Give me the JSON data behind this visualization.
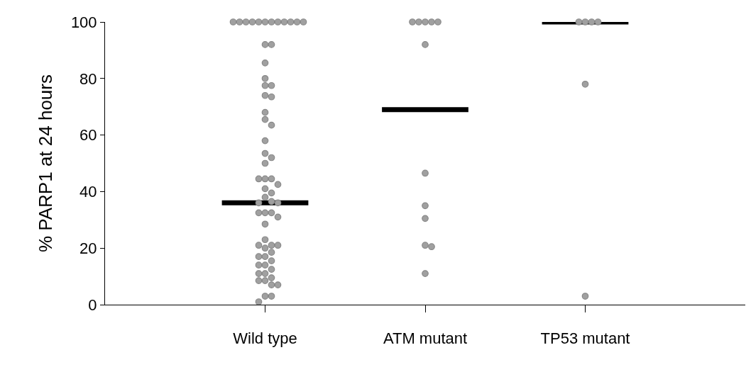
{
  "chart_data": {
    "type": "scatter",
    "ylabel": "% PARP1 at 24 hours",
    "categories": [
      "Wild type",
      "ATM mutant",
      "TP53 mutant"
    ],
    "ylim": [
      0,
      100
    ],
    "yticks": [
      0,
      20,
      40,
      60,
      80,
      100
    ],
    "series": [
      {
        "type": "box",
        "color": "#000000",
        "boxes": [
          {
            "low": 36,
            "q1": 36,
            "median": 36,
            "q3": 36,
            "high": 36
          },
          {
            "low": 69,
            "q1": 69,
            "median": 69,
            "q3": 69,
            "high": 69
          },
          {
            "low": 100,
            "q1": 100,
            "median": 100,
            "q3": 100,
            "high": 100
          }
        ]
      },
      {
        "color": "#a0a0a0",
        "marker": "circle",
        "x": [
          "Wild type",
          "Wild type",
          "Wild type",
          "Wild type",
          "Wild type",
          "Wild type",
          "Wild type",
          "Wild type",
          "Wild type",
          "Wild type",
          "Wild type",
          "Wild type",
          "Wild type",
          "Wild type",
          "Wild type",
          "Wild type",
          "Wild type",
          "Wild type",
          "Wild type",
          "Wild type",
          "Wild type",
          "Wild type",
          "Wild type",
          "Wild type",
          "Wild type",
          "Wild type",
          "Wild type",
          "Wild type",
          "Wild type",
          "Wild type",
          "Wild type",
          "Wild type",
          "Wild type",
          "Wild type",
          "Wild type",
          "Wild type",
          "Wild type",
          "Wild type",
          "Wild type",
          "Wild type",
          "Wild type",
          "Wild type",
          "Wild type",
          "Wild type",
          "Wild type",
          "Wild type",
          "Wild type",
          "Wild type",
          "Wild type",
          "Wild type",
          "Wild type",
          "Wild type",
          "Wild type",
          "Wild type",
          "Wild type",
          "Wild type",
          "Wild type",
          "Wild type",
          "Wild type",
          "Wild type",
          "Wild type",
          "Wild type",
          "Wild type",
          "Wild type",
          "ATM mutant",
          "ATM mutant",
          "ATM mutant",
          "ATM mutant",
          "ATM mutant",
          "ATM mutant",
          "ATM mutant",
          "ATM mutant",
          "ATM mutant",
          "ATM mutant",
          "ATM mutant",
          "ATM mutant",
          "TP53 mutant",
          "TP53 mutant",
          "TP53 mutant",
          "TP53 mutant",
          "TP53 mutant",
          "TP53 mutant"
        ],
        "values": [
          100,
          100,
          100,
          100,
          100,
          100,
          100,
          100,
          100,
          100,
          100,
          100,
          92,
          92,
          85.5,
          80,
          77.5,
          77.5,
          74,
          73.5,
          68,
          65.5,
          63.5,
          58,
          53.5,
          52,
          50,
          44.5,
          44.5,
          44.5,
          42.5,
          41,
          39.5,
          38,
          36.5,
          36,
          36,
          32.5,
          32.5,
          32.5,
          31,
          28.5,
          23,
          21,
          21,
          21,
          20,
          18.5,
          17,
          17,
          15.5,
          14,
          14,
          12.5,
          11,
          11,
          9.5,
          8.5,
          8.5,
          7,
          7,
          3,
          3,
          1,
          100,
          100,
          100,
          100,
          100,
          92,
          46.5,
          35,
          30.5,
          21,
          20.5,
          11,
          100,
          100,
          100,
          100,
          78,
          3
        ]
      }
    ]
  }
}
